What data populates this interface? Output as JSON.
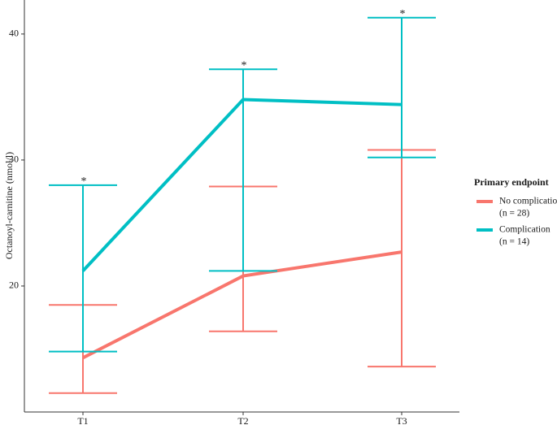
{
  "chart_data": {
    "type": "line",
    "y_label": "Octanoyl-carnitine (nmol/l)",
    "categories": [
      "T1",
      "T2",
      "T3"
    ],
    "ylim": [
      10,
      42.7
    ],
    "yticks": [
      20,
      30,
      40
    ],
    "legend_title": "Primary endpoint",
    "significance": [
      "*",
      "*",
      "*"
    ],
    "series": [
      {
        "name": "No complication",
        "note": "(n = 28)",
        "color": "#f8766d",
        "values": [
          14.3,
          20.8,
          22.7
        ],
        "upper": [
          18.5,
          27.9,
          30.8
        ],
        "lower": [
          11.5,
          16.4,
          13.6
        ]
      },
      {
        "name": "Complication",
        "note": "(n = 14)",
        "color": "#00bfc4",
        "values": [
          21.2,
          34.8,
          34.4
        ],
        "upper": [
          28.0,
          37.2,
          41.3
        ],
        "lower": [
          14.8,
          21.2,
          30.2
        ]
      }
    ]
  }
}
